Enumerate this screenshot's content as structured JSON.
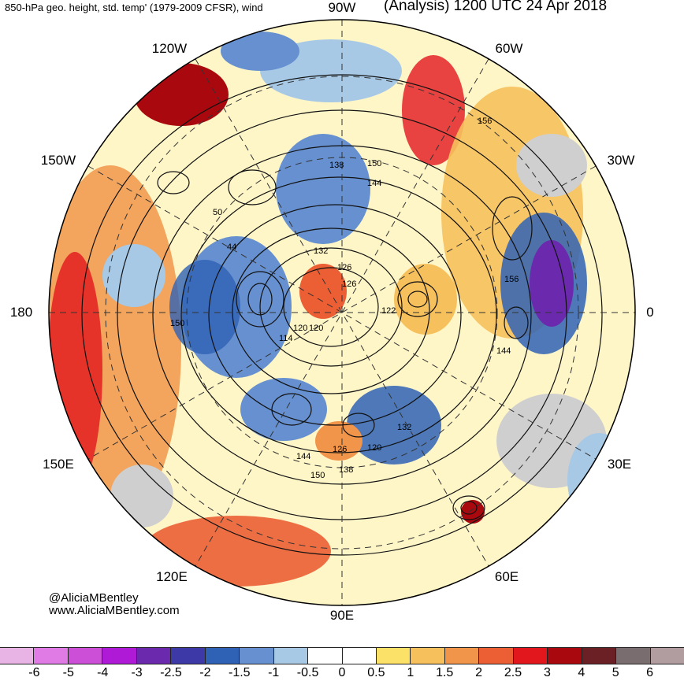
{
  "header": {
    "left_title": "850-hPa geo. height, std. temp' (1979-2009 CFSR), wind",
    "right_title": "(Analysis) 1200 UTC 24 Apr 2018"
  },
  "longitude_labels": {
    "top": "90W",
    "upper_left": "120W",
    "upper_right": "60W",
    "left_upper": "150W",
    "right_upper": "30W",
    "left": "180",
    "right": "0",
    "left_lower": "150E",
    "right_lower": "30E",
    "lower_left": "120E",
    "lower_right": "60E",
    "bottom": "90E"
  },
  "contour_labels": [
    "156",
    "150",
    "138",
    "144",
    "132",
    "126",
    "50",
    "44",
    "156",
    "150",
    "120",
    "114",
    "144",
    "126",
    "120",
    "132",
    "144",
    "150",
    "138",
    "126",
    "120",
    "122"
  ],
  "credit": {
    "handle": "@AliciaMBentley",
    "site": "www.AliciaMBentley.com"
  },
  "colorbar": {
    "colors": [
      "#e8b4e6",
      "#e07ae4",
      "#cc4fd8",
      "#ae1ad6",
      "#6b2aad",
      "#3d3aa8",
      "#2f62b4",
      "#6690cf",
      "#a7c9e6",
      "#ffffff",
      "#ffffff",
      "#fbe167",
      "#f6c15c",
      "#f1954a",
      "#ec5f35",
      "#e2171e",
      "#a9080e",
      "#6b2025",
      "#7a6d6f",
      "#b19d9f"
    ],
    "ticks": [
      "-6",
      "-5",
      "-4",
      "-3",
      "-2.5",
      "-2",
      "-1.5",
      "-1",
      "-0.5",
      "0",
      "0.5",
      "1",
      "1.5",
      "2",
      "2.5",
      "3",
      "4",
      "5",
      "6"
    ]
  }
}
